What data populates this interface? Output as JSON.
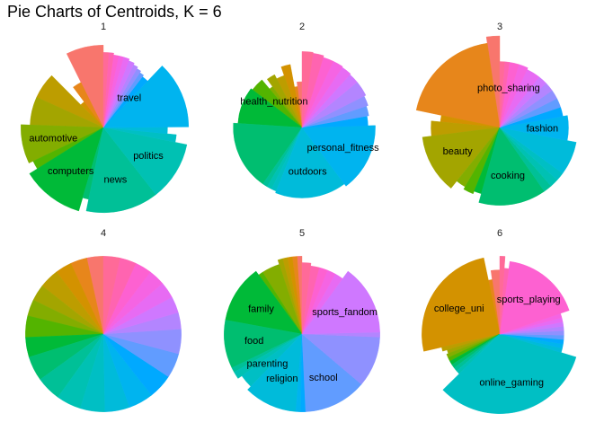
{
  "title": "Pie Charts of Centroids, K = 6",
  "colors": [
    "#f8766d",
    "#e7861b",
    "#d39200",
    "#bd9d00",
    "#a3a500",
    "#83ad00",
    "#53b400",
    "#00ba38",
    "#00be70",
    "#00c097",
    "#00c1b3",
    "#00bfc4",
    "#00bbda",
    "#00b4ef",
    "#00a9ff",
    "#619cff",
    "#8f91ff",
    "#b385ff",
    "#cf78ff",
    "#e76bf3",
    "#f564e3",
    "#fd61d1",
    "#ff64b0",
    "#ff6a98"
  ],
  "chart_data": [
    {
      "type": "pie",
      "title": "1",
      "labels": [
        "automotive",
        "computers",
        "news",
        "politics",
        "travel"
      ],
      "slices": [
        {
          "value": 6.6,
          "r": 0.9
        },
        {
          "value": 2.6,
          "r": 0.55
        },
        {
          "value": 2.0,
          "r": 0.35
        },
        {
          "value": 5.2,
          "r": 0.8
        },
        {
          "value": 5.6,
          "r": 0.8
        },
        {
          "value": 6.9,
          "r": 0.9,
          "label": "automotive"
        },
        {
          "value": 1.6,
          "r": 0.85
        },
        {
          "value": 10.4,
          "r": 0.95,
          "label": "computers"
        },
        {
          "value": 1.2,
          "r": 0.8
        },
        {
          "value": 12.4,
          "r": 0.93,
          "label": "news"
        },
        {
          "value": 10.1,
          "r": 0.93,
          "label": "politics"
        },
        {
          "value": 1.5,
          "r": 0.8
        },
        {
          "value": 1.5,
          "r": 0.7
        },
        {
          "value": 11.5,
          "r": 0.93
        },
        {
          "value": 1.5,
          "r": 0.7,
          "label": "travel"
        },
        {
          "value": 1.0,
          "r": 0.72
        },
        {
          "value": 1.0,
          "r": 0.74
        },
        {
          "value": 1.0,
          "r": 0.76
        },
        {
          "value": 1.2,
          "r": 0.78
        },
        {
          "value": 1.2,
          "r": 0.8
        },
        {
          "value": 1.0,
          "r": 0.8
        },
        {
          "value": 1.0,
          "r": 0.8
        },
        {
          "value": 1.0,
          "r": 0.82
        },
        {
          "value": 1.0,
          "r": 0.82
        }
      ]
    },
    {
      "type": "pie",
      "title": "2",
      "labels": [
        "health_nutrition",
        "outdoors",
        "personal_fitness"
      ],
      "slices": [
        {
          "value": 1.5,
          "r": 0.5
        },
        {
          "value": 1.0,
          "r": 0.45
        },
        {
          "value": 2.0,
          "r": 0.7
        },
        {
          "value": 2.0,
          "r": 0.6
        },
        {
          "value": 2.0,
          "r": 0.65
        },
        {
          "value": 1.0,
          "r": 0.55
        },
        {
          "value": 3.0,
          "r": 0.68,
          "label": "health_nutrition"
        },
        {
          "value": 8.0,
          "r": 0.7
        },
        {
          "value": 14.0,
          "r": 0.75
        },
        {
          "value": 1.0,
          "r": 0.75
        },
        {
          "value": 1.0,
          "r": 0.75
        },
        {
          "value": 1.0,
          "r": 0.75
        },
        {
          "value": 14.0,
          "r": 0.77,
          "label": "outdoors"
        },
        {
          "value": 13.0,
          "r": 0.8,
          "label": "personal_fitness"
        },
        {
          "value": 2.0,
          "r": 0.72
        },
        {
          "value": 2.0,
          "r": 0.74
        },
        {
          "value": 2.0,
          "r": 0.76
        },
        {
          "value": 3.0,
          "r": 0.78
        },
        {
          "value": 2.0,
          "r": 0.78
        },
        {
          "value": 2.0,
          "r": 0.79
        },
        {
          "value": 2.0,
          "r": 0.8
        },
        {
          "value": 2.0,
          "r": 0.8
        },
        {
          "value": 2.0,
          "r": 0.82
        },
        {
          "value": 2.0,
          "r": 0.83
        }
      ]
    },
    {
      "type": "pie",
      "title": "3",
      "labels": [
        "beauty",
        "cooking",
        "fashion",
        "photo_sharing"
      ],
      "slices": [
        {
          "value": 2.0,
          "r": 1.0
        },
        {
          "value": 16.6,
          "r": 0.93
        },
        {
          "value": 1.5,
          "r": 0.65
        },
        {
          "value": 3.0,
          "r": 0.75
        },
        {
          "value": 10.5,
          "r": 0.85,
          "label": "beauty"
        },
        {
          "value": 2.0,
          "r": 0.75
        },
        {
          "value": 2.0,
          "r": 0.78
        },
        {
          "value": 1.5,
          "r": 0.75
        },
        {
          "value": 12.0,
          "r": 0.85,
          "label": "cooking"
        },
        {
          "value": 1.5,
          "r": 0.85
        },
        {
          "value": 1.5,
          "r": 0.85
        },
        {
          "value": 1.5,
          "r": 0.85
        },
        {
          "value": 6.0,
          "r": 0.85
        },
        {
          "value": 5.0,
          "r": 0.75,
          "label": "fashion"
        },
        {
          "value": 2.0,
          "r": 0.7
        },
        {
          "value": 2.0,
          "r": 0.7
        },
        {
          "value": 2.0,
          "r": 0.7
        },
        {
          "value": 2.0,
          "r": 0.7
        },
        {
          "value": 2.0,
          "r": 0.7
        },
        {
          "value": 3.0,
          "r": 0.7
        },
        {
          "value": 2.0,
          "r": 0.72
        },
        {
          "value": 2.0,
          "r": 0.72,
          "label": "photo_sharing"
        },
        {
          "value": 1.0,
          "r": 0.72
        },
        {
          "value": 1.0,
          "r": 0.72
        }
      ]
    },
    {
      "type": "pie",
      "title": "4",
      "labels": [],
      "slices": [
        {
          "value": 1.0,
          "r": 0.85
        },
        {
          "value": 1.0,
          "r": 0.85
        },
        {
          "value": 1.0,
          "r": 0.85
        },
        {
          "value": 1.2,
          "r": 0.85
        },
        {
          "value": 1.0,
          "r": 0.85
        },
        {
          "value": 1.0,
          "r": 0.85
        },
        {
          "value": 1.3,
          "r": 0.85
        },
        {
          "value": 1.2,
          "r": 0.85
        },
        {
          "value": 1.5,
          "r": 0.85
        },
        {
          "value": 1.5,
          "r": 0.85
        },
        {
          "value": 1.5,
          "r": 0.85
        },
        {
          "value": 1.5,
          "r": 0.85
        },
        {
          "value": 1.5,
          "r": 0.85
        },
        {
          "value": 1.5,
          "r": 0.85
        },
        {
          "value": 1.5,
          "r": 0.85
        },
        {
          "value": 1.5,
          "r": 0.85
        },
        {
          "value": 1.5,
          "r": 0.85
        },
        {
          "value": 1.0,
          "r": 0.85
        },
        {
          "value": 1.0,
          "r": 0.85
        },
        {
          "value": 1.0,
          "r": 0.85
        },
        {
          "value": 1.0,
          "r": 0.85
        },
        {
          "value": 1.0,
          "r": 0.85
        },
        {
          "value": 1.0,
          "r": 0.85
        },
        {
          "value": 1.0,
          "r": 0.85
        }
      ]
    },
    {
      "type": "pie",
      "title": "5",
      "labels": [
        "family",
        "food",
        "parenting",
        "religion",
        "sports_fandom",
        "school"
      ],
      "slices": [
        {
          "value": 1.0,
          "r": 0.85
        },
        {
          "value": 1.0,
          "r": 0.85
        },
        {
          "value": 1.0,
          "r": 0.85
        },
        {
          "value": 1.0,
          "r": 0.85
        },
        {
          "value": 1.0,
          "r": 0.85
        },
        {
          "value": 4.0,
          "r": 0.8
        },
        {
          "value": 1.0,
          "r": 0.8
        },
        {
          "value": 12.0,
          "r": 0.85,
          "label": "family"
        },
        {
          "value": 10.0,
          "r": 0.85,
          "label": "food"
        },
        {
          "value": 1.0,
          "r": 0.85
        },
        {
          "value": 1.5,
          "r": 0.85
        },
        {
          "value": 3.0,
          "r": 0.8,
          "label": "parenting"
        },
        {
          "value": 11.0,
          "r": 0.85,
          "label": "religion"
        },
        {
          "value": 1.0,
          "r": 0.85
        },
        {
          "value": 1.0,
          "r": 0.85
        },
        {
          "value": 13.0,
          "r": 0.85,
          "label": "school"
        },
        {
          "value": 10.5,
          "r": 0.85
        },
        {
          "value": 1.0,
          "r": 0.85
        },
        {
          "value": 14.5,
          "r": 0.85,
          "label": "sports_fandom"
        },
        {
          "value": 2.0,
          "r": 0.75
        },
        {
          "value": 2.0,
          "r": 0.75
        },
        {
          "value": 2.0,
          "r": 0.75
        },
        {
          "value": 2.0,
          "r": 0.75
        },
        {
          "value": 2.0,
          "r": 0.78
        }
      ]
    },
    {
      "type": "pie",
      "title": "6",
      "labels": [
        "college_uni",
        "online_gaming",
        "sports_playing"
      ],
      "slices": [
        {
          "value": 2.0,
          "r": 0.7
        },
        {
          "value": 1.0,
          "r": 0.6
        },
        {
          "value": 23.0,
          "r": 0.85,
          "label": "college_uni"
        },
        {
          "value": 1.0,
          "r": 0.65
        },
        {
          "value": 1.0,
          "r": 0.6
        },
        {
          "value": 1.0,
          "r": 0.62
        },
        {
          "value": 1.0,
          "r": 0.62
        },
        {
          "value": 1.0,
          "r": 0.62
        },
        {
          "value": 1.0,
          "r": 0.62
        },
        {
          "value": 1.0,
          "r": 0.62
        },
        {
          "value": 1.0,
          "r": 0.62
        },
        {
          "value": 30.0,
          "r": 0.87,
          "label": "online_gaming"
        },
        {
          "value": 1.0,
          "r": 0.7
        },
        {
          "value": 1.0,
          "r": 0.7
        },
        {
          "value": 1.0,
          "r": 0.7
        },
        {
          "value": 1.0,
          "r": 0.7
        },
        {
          "value": 1.0,
          "r": 0.7
        },
        {
          "value": 1.0,
          "r": 0.7
        },
        {
          "value": 1.0,
          "r": 0.7
        },
        {
          "value": 1.0,
          "r": 0.7
        },
        {
          "value": 1.0,
          "r": 0.7
        },
        {
          "value": 16.0,
          "r": 0.8,
          "label": "sports_playing"
        },
        {
          "value": 1.0,
          "r": 0.72
        },
        {
          "value": 1.0,
          "r": 0.85
        }
      ]
    }
  ]
}
